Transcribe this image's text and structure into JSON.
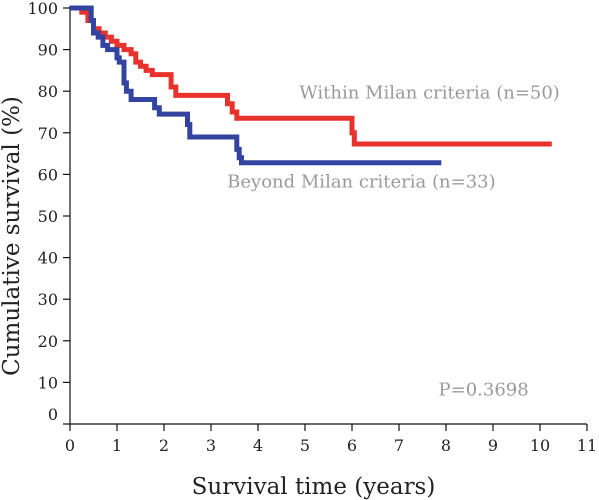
{
  "chart_data": {
    "type": "line",
    "xlabel": "Survival time (years)",
    "ylabel": "Cumulative survival (%)",
    "xlim": [
      0,
      11
    ],
    "ylim": [
      0,
      100
    ],
    "x_ticks": [
      0,
      1,
      2,
      3,
      4,
      5,
      6,
      7,
      8,
      9,
      10,
      11
    ],
    "y_ticks": [
      0,
      10,
      20,
      30,
      40,
      50,
      60,
      70,
      80,
      90,
      100
    ],
    "grid": false,
    "step": true,
    "series": [
      {
        "name": "Within Milan criteria (n=50)",
        "color": "#e8322d",
        "x": [
          0,
          0.25,
          0.38,
          0.5,
          0.62,
          0.75,
          0.88,
          1.0,
          1.15,
          1.3,
          1.4,
          1.5,
          1.62,
          1.75,
          2.15,
          2.25,
          3.35,
          3.45,
          3.55,
          6.0,
          6.05,
          10.25
        ],
        "y": [
          100,
          99,
          97,
          95,
          94,
          93,
          92,
          91,
          90,
          89,
          87,
          86,
          85,
          84,
          81,
          79,
          77,
          75,
          73.5,
          70,
          67.3,
          67.3
        ]
      },
      {
        "name": "Beyond Milan criteria (n=33)",
        "color": "#3344a0",
        "x": [
          0,
          0.45,
          0.5,
          0.6,
          0.7,
          0.8,
          1.0,
          1.05,
          1.15,
          1.2,
          1.3,
          1.8,
          1.9,
          2.5,
          2.55,
          3.55,
          3.6,
          3.65,
          7.9
        ],
        "y": [
          100,
          97,
          94,
          93,
          91,
          90,
          88,
          87,
          82,
          80,
          78,
          76,
          74.5,
          72,
          69,
          66,
          64,
          62.8,
          62.8
        ]
      }
    ],
    "annotations": [
      {
        "text": "Within Milan criteria (n=50)",
        "x": 7.65,
        "y": 78.2
      },
      {
        "text": "Beyond Milan criteria (n=33)",
        "x": 6.2,
        "y": 56.8
      },
      {
        "text": "P=0.3698",
        "x": 8.8,
        "y": 6.8
      }
    ]
  }
}
